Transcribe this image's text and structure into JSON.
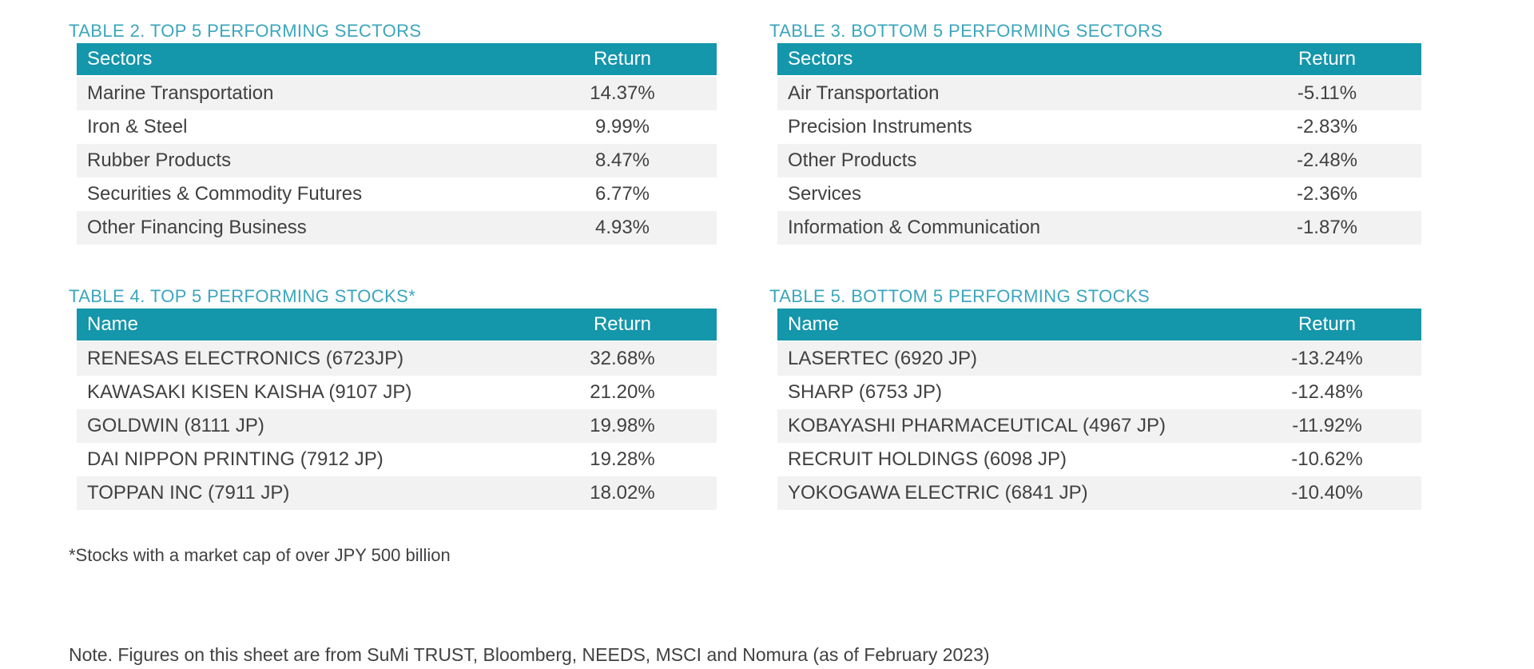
{
  "colors": {
    "header_bg": "#1496AB",
    "title_text": "#3BA6BC",
    "row_alt_bg": "#F2F2F2",
    "body_text": "#414042",
    "header_text": "#FFFFFF"
  },
  "tables": [
    {
      "title": "TABLE 2. TOP 5 PERFORMING SECTORS",
      "columns": [
        "Sectors",
        "Return"
      ],
      "rows": [
        [
          "Marine Transportation",
          "14.37%"
        ],
        [
          "Iron & Steel",
          "9.99%"
        ],
        [
          "Rubber Products",
          "8.47%"
        ],
        [
          "Securities & Commodity Futures",
          "6.77%"
        ],
        [
          "Other Financing Business",
          "4.93%"
        ]
      ]
    },
    {
      "title": "TABLE 3. BOTTOM 5 PERFORMING SECTORS",
      "columns": [
        "Sectors",
        "Return"
      ],
      "rows": [
        [
          "Air Transportation",
          "-5.11%"
        ],
        [
          "Precision Instruments",
          "-2.83%"
        ],
        [
          "Other Products",
          "-2.48%"
        ],
        [
          "Services",
          "-2.36%"
        ],
        [
          "Information & Communication",
          "-1.87%"
        ]
      ]
    },
    {
      "title": "TABLE 4. TOP 5 PERFORMING STOCKS*",
      "columns": [
        "Name",
        "Return"
      ],
      "rows": [
        [
          "RENESAS ELECTRONICS (6723JP)",
          "32.68%"
        ],
        [
          "KAWASAKI KISEN KAISHA (9107 JP)",
          "21.20%"
        ],
        [
          "GOLDWIN (8111 JP)",
          "19.98%"
        ],
        [
          "DAI NIPPON PRINTING (7912 JP)",
          "19.28%"
        ],
        [
          "TOPPAN INC (7911 JP)",
          "18.02%"
        ]
      ]
    },
    {
      "title": "TABLE 5. BOTTOM 5 PERFORMING STOCKS",
      "columns": [
        "Name",
        "Return"
      ],
      "rows": [
        [
          "LASERTEC (6920 JP)",
          "-13.24%"
        ],
        [
          "SHARP (6753 JP)",
          "-12.48%"
        ],
        [
          "KOBAYASHI PHARMACEUTICAL (4967 JP)",
          "-11.92%"
        ],
        [
          "RECRUIT HOLDINGS (6098 JP)",
          "-10.62%"
        ],
        [
          "YOKOGAWA ELECTRIC (6841 JP)",
          "-10.40%"
        ]
      ]
    }
  ],
  "footnote": "*Stocks with a market cap of over JPY 500 billion",
  "note": "Note. Figures on this sheet are from SuMi TRUST, Bloomberg, NEEDS, MSCI and Nomura (as of February 2023)"
}
